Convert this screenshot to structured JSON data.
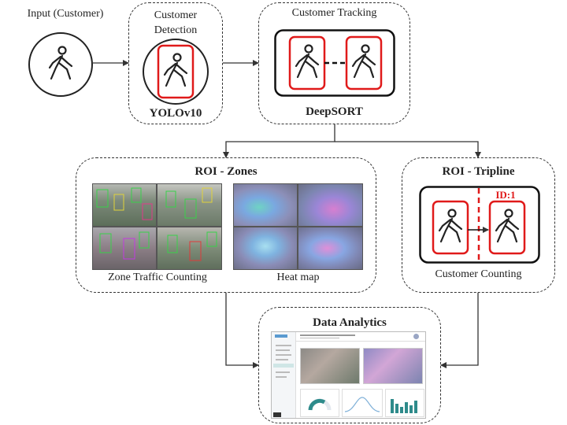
{
  "input": {
    "label": "Input (Customer)"
  },
  "detection": {
    "title": "Customer\nDetection",
    "model": "YOLOv10"
  },
  "tracking": {
    "title": "Customer Tracking",
    "model": "DeepSORT"
  },
  "zones": {
    "title": "ROI - Zones",
    "left_caption": "Zone Traffic Counting",
    "right_caption": "Heat map"
  },
  "tripline": {
    "title": "ROI - Tripline",
    "id_label": "ID:1",
    "caption": "Customer Counting"
  },
  "analytics": {
    "title": "Data Analytics"
  },
  "colors": {
    "accent_red": "#e01a1a",
    "line": "#333333",
    "dash_teal": "#2e8b8b"
  }
}
